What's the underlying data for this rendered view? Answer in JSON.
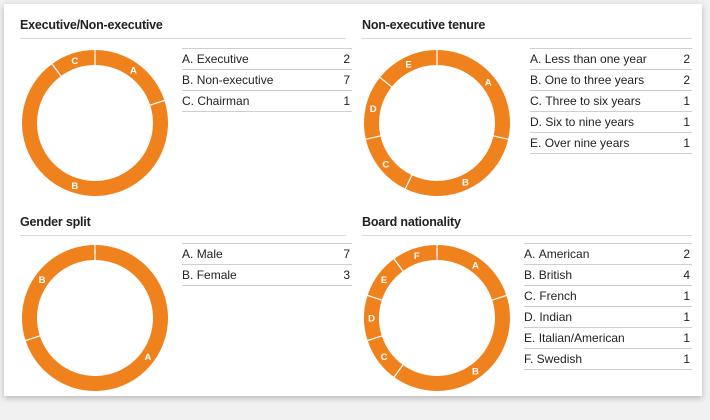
{
  "accent_color": "#f0821e",
  "chart_data": [
    {
      "type": "pie",
      "title": "Executive/Non-executive",
      "slices": [
        {
          "letter": "A",
          "label": "Executive",
          "value": 2
        },
        {
          "letter": "B",
          "label": "Non-executive",
          "value": 7
        },
        {
          "letter": "C",
          "label": "Chairman",
          "value": 1
        }
      ]
    },
    {
      "type": "pie",
      "title": "Non-executive tenure",
      "slices": [
        {
          "letter": "A",
          "label": "Less than one year",
          "value": 2
        },
        {
          "letter": "B",
          "label": "One to three years",
          "value": 2
        },
        {
          "letter": "C",
          "label": "Three to six years",
          "value": 1
        },
        {
          "letter": "D",
          "label": "Six to nine years",
          "value": 1
        },
        {
          "letter": "E",
          "label": "Over nine years",
          "value": 1
        }
      ]
    },
    {
      "type": "pie",
      "title": "Gender split",
      "slices": [
        {
          "letter": "A",
          "label": "Male",
          "value": 7
        },
        {
          "letter": "B",
          "label": "Female",
          "value": 3
        }
      ]
    },
    {
      "type": "pie",
      "title": "Board nationality",
      "slices": [
        {
          "letter": "A",
          "label": "American",
          "value": 2
        },
        {
          "letter": "B",
          "label": "British",
          "value": 4
        },
        {
          "letter": "C",
          "label": "French",
          "value": 1
        },
        {
          "letter": "D",
          "label": "Indian",
          "value": 1
        },
        {
          "letter": "E",
          "label": "Italian/American",
          "value": 1
        },
        {
          "letter": "F",
          "label": "Swedish",
          "value": 1
        }
      ]
    }
  ]
}
